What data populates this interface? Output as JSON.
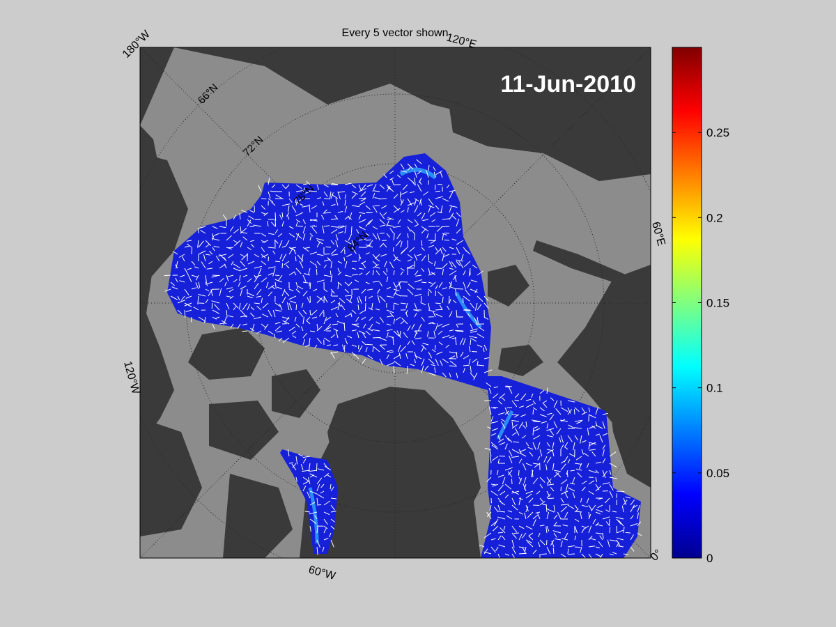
{
  "title": "Every 5 vector shown",
  "date_label": "11-Jun-2010",
  "longitude_labels": {
    "lon_180w": "180°W",
    "lon_120e": "120°E",
    "lon_60e": "60°E",
    "lon_120w": "120°W",
    "lon_60w": "60°W",
    "lon_0": "0°"
  },
  "latitude_labels": [
    "66°N",
    "72°N",
    "78°N",
    "84°N"
  ],
  "colorbar": {
    "colormap": "jet",
    "range": [
      0,
      0.3
    ],
    "ticks": [
      "0",
      "0.05",
      "0.1",
      "0.15",
      "0.2",
      "0.25"
    ]
  },
  "colors": {
    "figure_background": "#cccccc",
    "land": "#3a3a3a",
    "sea": "#8c8c8c",
    "data_field": "#1520d8",
    "vectors": "#ffffff"
  }
}
